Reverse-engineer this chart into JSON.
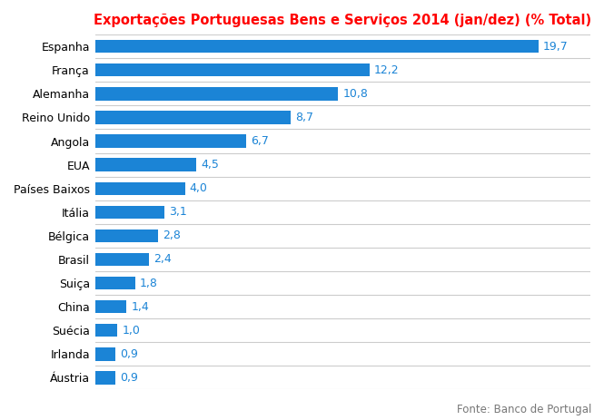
{
  "title": "Exportações Portuguesas Bens e Serviços 2014 (jan/dez) (% Total)",
  "title_color": "#FF0000",
  "title_fontsize": 10.5,
  "categories": [
    "Áustria",
    "Irlanda",
    "Suécia",
    "China",
    "Suiça",
    "Brasil",
    "Bélgica",
    "Itália",
    "Países Baixos",
    "EUA",
    "Angola",
    "Reino Unido",
    "Alemanha",
    "França",
    "Espanha"
  ],
  "values": [
    0.9,
    0.9,
    1.0,
    1.4,
    1.8,
    2.4,
    2.8,
    3.1,
    4.0,
    4.5,
    6.7,
    8.7,
    10.8,
    12.2,
    19.7
  ],
  "bar_color": "#1B84D6",
  "label_color": "#1B84D6",
  "label_fontsize": 9,
  "ylabel_fontsize": 9,
  "source_text": "Fonte: Banco de Portugal",
  "source_fontsize": 8.5,
  "source_color": "#777777",
  "xlim": [
    0,
    22
  ],
  "background_color": "#FFFFFF",
  "bar_height": 0.55,
  "divider_color": "#CCCCCC",
  "divider_linewidth": 0.8
}
